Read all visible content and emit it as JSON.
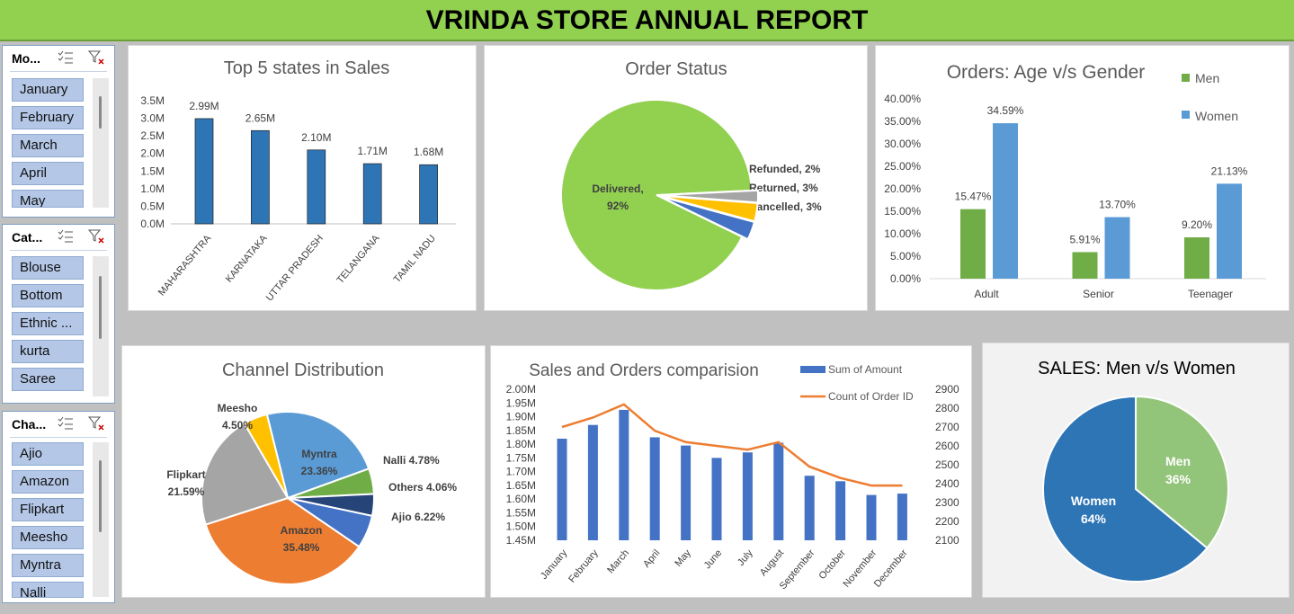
{
  "title": "VRINDA STORE ANNUAL REPORT",
  "slicers": [
    {
      "title": "Mo...",
      "items": [
        "January",
        "February",
        "March",
        "April",
        "May"
      ]
    },
    {
      "title": "Cat...",
      "items": [
        "Blouse",
        "Bottom",
        "Ethnic ...",
        "kurta",
        "Saree"
      ]
    },
    {
      "title": "Cha...",
      "items": [
        "Ajio",
        "Amazon",
        "Flipkart",
        "Meesho",
        "Myntra",
        "Nalli"
      ]
    }
  ],
  "colors": {
    "header": "#92d050",
    "blue": "#2e75b6",
    "green": "#70ad47",
    "orange": "#ed7d31",
    "lightgreen": "#92d050",
    "midblue": "#5b9bd5",
    "royal": "#4472c4"
  },
  "chart_data": [
    {
      "type": "bar",
      "title": "Top 5 states in Sales",
      "categories": [
        "MAHARASHTRA",
        "KARNATAKA",
        "UTTAR PRADESH",
        "TELANGANA",
        "TAMIL NADU"
      ],
      "values": [
        2.99,
        2.65,
        2.1,
        1.71,
        1.68
      ],
      "data_labels": [
        "2.99M",
        "2.65M",
        "2.10M",
        "1.71M",
        "1.68M"
      ],
      "y_ticks": [
        "3.5M",
        "3.0M",
        "2.5M",
        "2.0M",
        "1.5M",
        "1.0M",
        "0.5M",
        "0.0M"
      ],
      "ylim": [
        0,
        3.5
      ],
      "grid": false
    },
    {
      "type": "pie",
      "title": "Order Status",
      "slices": [
        {
          "label": "Delivered",
          "pct": "92%",
          "value": 92
        },
        {
          "label": "Cancelled",
          "pct": "3%",
          "value": 3
        },
        {
          "label": "Returned",
          "pct": "3%",
          "value": 3
        },
        {
          "label": "Refunded",
          "pct": "2%",
          "value": 2
        }
      ]
    },
    {
      "type": "bar",
      "title": "Orders: Age v/s Gender",
      "categories": [
        "Adult",
        "Senior",
        "Teenager"
      ],
      "series": [
        {
          "name": "Men",
          "values": [
            15.47,
            5.91,
            9.2
          ],
          "labels": [
            "15.47%",
            "5.91%",
            "9.20%"
          ]
        },
        {
          "name": "Women",
          "values": [
            34.59,
            13.7,
            21.13
          ],
          "labels": [
            "34.59%",
            "13.70%",
            "21.13%"
          ]
        }
      ],
      "y_ticks": [
        "40.00%",
        "35.00%",
        "30.00%",
        "25.00%",
        "20.00%",
        "15.00%",
        "10.00%",
        "5.00%",
        "0.00%"
      ],
      "ylim": [
        0,
        40
      ],
      "legend": "top-right"
    },
    {
      "type": "pie",
      "title": "Channel Distribution",
      "slices": [
        {
          "label": "Myntra",
          "pct": "23.36%",
          "value": 23.36
        },
        {
          "label": "Nalli",
          "pct": "4.78%",
          "value": 4.78
        },
        {
          "label": "Others",
          "pct": "4.06%",
          "value": 4.06
        },
        {
          "label": "Ajio",
          "pct": "6.22%",
          "value": 6.22
        },
        {
          "label": "Amazon",
          "pct": "35.48%",
          "value": 35.48
        },
        {
          "label": "Flipkart",
          "pct": "21.59%",
          "value": 21.59
        },
        {
          "label": "Meesho",
          "pct": "4.50%",
          "value": 4.5
        }
      ]
    },
    {
      "type": "bar",
      "title": "Sales and Orders comparision",
      "categories": [
        "January",
        "February",
        "March",
        "April",
        "May",
        "June",
        "July",
        "August",
        "September",
        "October",
        "November",
        "December"
      ],
      "series": [
        {
          "name": "Sum of Amount",
          "values": [
            1.82,
            1.87,
            1.925,
            1.825,
            1.795,
            1.75,
            1.77,
            1.805,
            1.685,
            1.665,
            1.615,
            1.62
          ]
        },
        {
          "name": "Count of Order ID",
          "values": [
            2700,
            2750,
            2820,
            2680,
            2620,
            2600,
            2580,
            2620,
            2490,
            2430,
            2390,
            2390
          ]
        }
      ],
      "y_ticks": [
        "2.00M",
        "1.95M",
        "1.90M",
        "1.85M",
        "1.80M",
        "1.75M",
        "1.70M",
        "1.65M",
        "1.60M",
        "1.55M",
        "1.50M",
        "1.45M"
      ],
      "y2_ticks": [
        "2900",
        "2800",
        "2700",
        "2600",
        "2500",
        "2400",
        "2300",
        "2200",
        "2100"
      ],
      "ylim": [
        1.45,
        2.0
      ],
      "y2lim": [
        2100,
        2900
      ],
      "legend": "top-right"
    },
    {
      "type": "pie",
      "title": "SALES: Men v/s Women",
      "slices": [
        {
          "label": "Men",
          "pct": "36%",
          "value": 36
        },
        {
          "label": "Women",
          "pct": "64%",
          "value": 64
        }
      ]
    }
  ]
}
